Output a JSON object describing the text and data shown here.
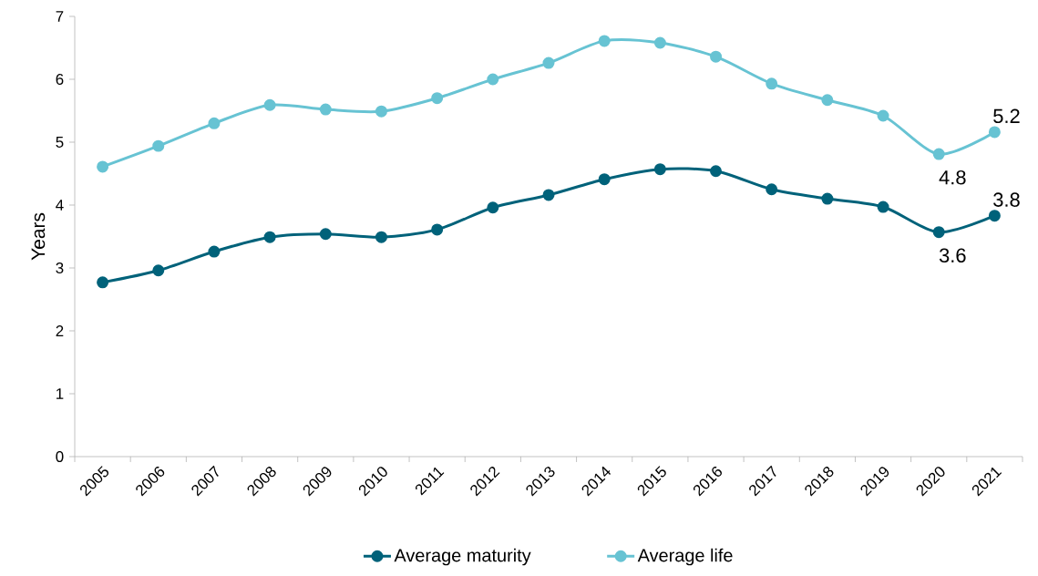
{
  "chart_data": {
    "type": "line",
    "ylabel": "Years",
    "categories": [
      "2005",
      "2006",
      "2007",
      "2008",
      "2009",
      "2010",
      "2011",
      "2012",
      "2013",
      "2014",
      "2015",
      "2016",
      "2017",
      "2018",
      "2019",
      "2020",
      "2021"
    ],
    "series": [
      {
        "name": "Average maturity",
        "color": "#00627a",
        "values": [
          2.77,
          2.96,
          3.26,
          3.49,
          3.54,
          3.49,
          3.61,
          3.96,
          4.16,
          4.41,
          4.57,
          4.54,
          4.25,
          4.1,
          3.97,
          3.57,
          3.83
        ],
        "value_labels": [
          null,
          null,
          null,
          null,
          null,
          null,
          null,
          null,
          null,
          null,
          null,
          null,
          null,
          null,
          null,
          "3.6",
          "3.8"
        ]
      },
      {
        "name": "Average life",
        "color": "#67c3d3",
        "values": [
          4.61,
          4.94,
          5.3,
          5.59,
          5.52,
          5.49,
          5.7,
          6.0,
          6.26,
          6.61,
          6.58,
          6.36,
          5.93,
          5.67,
          5.42,
          4.81,
          5.16
        ],
        "value_labels": [
          null,
          null,
          null,
          null,
          null,
          null,
          null,
          null,
          null,
          null,
          null,
          null,
          null,
          null,
          null,
          "4.8",
          "5.2"
        ]
      }
    ],
    "ylim": [
      0,
      7
    ],
    "yticks": [
      0,
      1,
      2,
      3,
      4,
      5,
      6,
      7
    ],
    "grid": false,
    "legend": "bottom",
    "marker": "circle",
    "line_style": "solid"
  }
}
